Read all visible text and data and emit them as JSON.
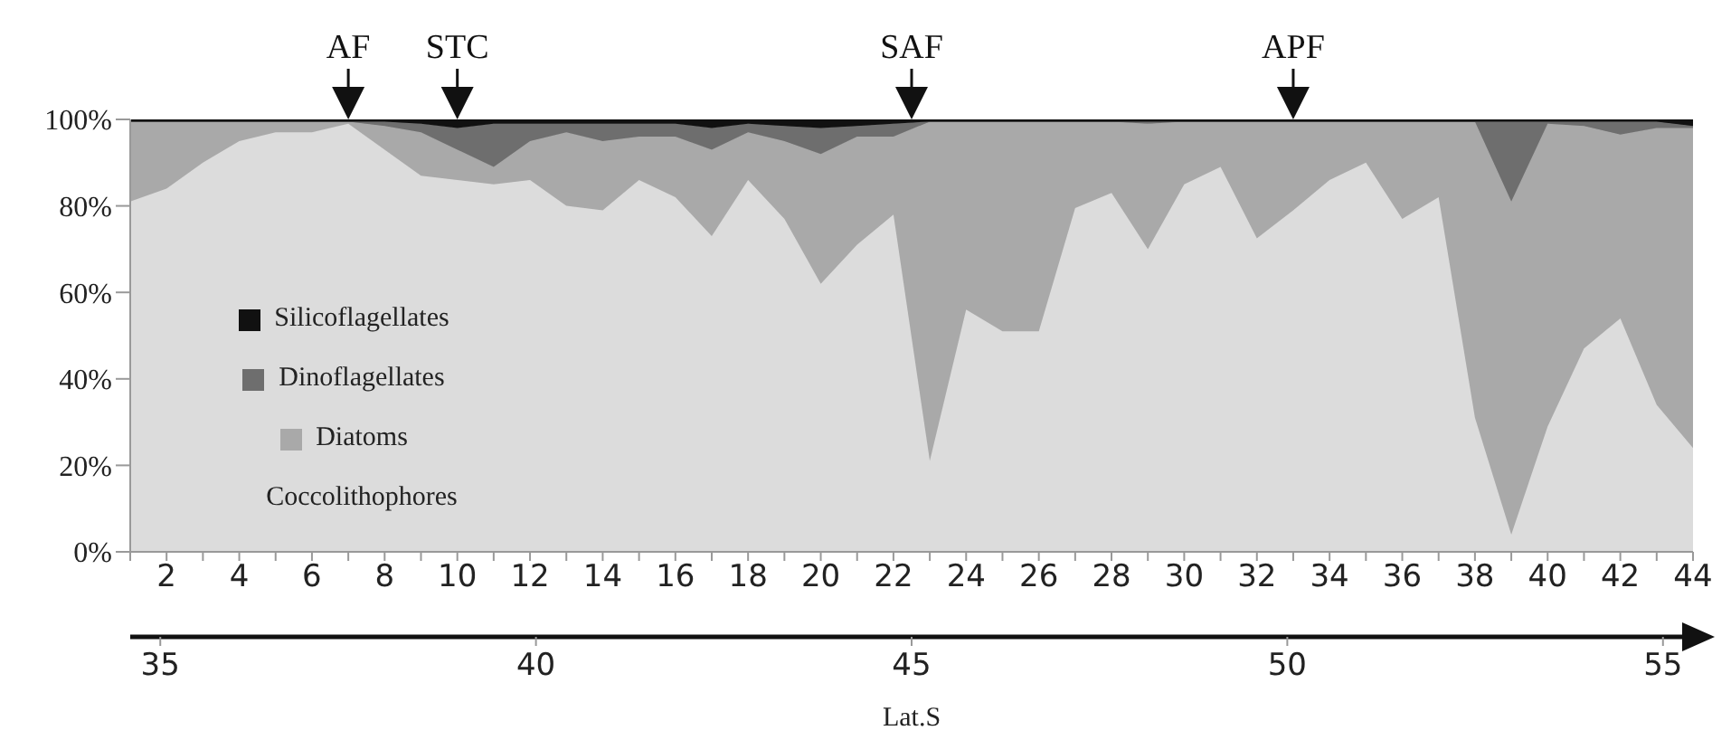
{
  "chart_data": {
    "type": "area",
    "stacked": true,
    "x2label": "Lat.S",
    "x": [
      1,
      2,
      3,
      4,
      5,
      6,
      7,
      8,
      9,
      10,
      11,
      12,
      13,
      14,
      15,
      16,
      17,
      18,
      19,
      20,
      21,
      22,
      23,
      24,
      25,
      26,
      27,
      28,
      29,
      30,
      31,
      32,
      33,
      34,
      35,
      36,
      37,
      38,
      39,
      40,
      41,
      42,
      43,
      44
    ],
    "series": [
      {
        "name": "Coccolithophores",
        "color": "#dcdcdc",
        "values": [
          81,
          84,
          90,
          95,
          97,
          97,
          99,
          93,
          87,
          86,
          85,
          86,
          80,
          79,
          86,
          82,
          73,
          86,
          77,
          62,
          71,
          78,
          21,
          56,
          51,
          51,
          79.5,
          83,
          70,
          85,
          89,
          72.5,
          79,
          86,
          90,
          77,
          82,
          31,
          4,
          29,
          47,
          54,
          34,
          24
        ]
      },
      {
        "name": "Diatoms",
        "color": "#a9a9a9",
        "values": [
          18.5,
          15.5,
          9.5,
          4.5,
          2.5,
          2.5,
          0.5,
          5.5,
          10,
          7,
          4,
          9,
          17,
          16,
          10,
          14,
          20,
          11,
          18,
          30,
          25,
          18,
          78.5,
          43.5,
          48.5,
          48.5,
          20,
          16.5,
          29,
          14.5,
          10.5,
          27,
          20.5,
          13.5,
          9.5,
          22.5,
          17.5,
          68.5,
          77,
          70,
          51.5,
          42.5,
          64,
          74
        ]
      },
      {
        "name": "Dinoflagellates",
        "color": "#6e6e6e",
        "values": [
          0,
          0,
          0,
          0,
          0,
          0,
          0,
          1,
          2,
          5,
          10,
          4,
          2,
          4,
          3,
          3,
          5,
          2,
          3.5,
          6,
          2.5,
          3,
          0,
          0,
          0,
          0,
          0,
          0,
          0.5,
          0,
          0,
          0,
          0,
          0,
          0,
          0,
          0,
          0,
          18.5,
          0.5,
          1,
          3,
          1.5,
          0.5
        ]
      },
      {
        "name": "Silicoflagellates",
        "color": "#111111",
        "values": [
          0.5,
          0.5,
          0.5,
          0.5,
          0.5,
          0.5,
          0.5,
          0.5,
          1,
          2,
          1,
          1,
          1,
          1,
          1,
          1,
          2,
          1,
          1.5,
          2,
          1.5,
          1,
          0.5,
          0.5,
          0.5,
          0.5,
          0.5,
          0.5,
          0.5,
          0.5,
          0.5,
          0.5,
          0.5,
          0.5,
          0.5,
          0.5,
          0.5,
          0.5,
          0.5,
          0.5,
          0.5,
          0.5,
          0.5,
          1.5
        ]
      }
    ],
    "xlim": [
      1,
      44
    ],
    "xticks": [
      {
        "value": 1,
        "label": null
      },
      2,
      {
        "value": 3,
        "label": null
      },
      4,
      {
        "value": 5,
        "label": null
      },
      6,
      {
        "value": 7,
        "label": null
      },
      8,
      {
        "value": 9,
        "label": null
      },
      10,
      {
        "value": 11,
        "label": null
      },
      12,
      {
        "value": 13,
        "label": null
      },
      14,
      {
        "value": 15,
        "label": null
      },
      16,
      {
        "value": 17,
        "label": null
      },
      18,
      {
        "value": 19,
        "label": null
      },
      20,
      {
        "value": 21,
        "label": null
      },
      22,
      {
        "value": 23,
        "label": null
      },
      24,
      {
        "value": 25,
        "label": null
      },
      26,
      {
        "value": 27,
        "label": null
      },
      28,
      {
        "value": 29,
        "label": null
      },
      30,
      {
        "value": 31,
        "label": null
      },
      32,
      {
        "value": 33,
        "label": null
      },
      34,
      {
        "value": 35,
        "label": null
      },
      36,
      {
        "value": 37,
        "label": null
      },
      38,
      {
        "value": 39,
        "label": null
      },
      40,
      {
        "value": 41,
        "label": null
      },
      42,
      {
        "value": 43,
        "label": null
      },
      44
    ],
    "x2lim": [
      34.6,
      55.4
    ],
    "x2ticks": [
      35,
      40,
      45,
      50,
      55
    ],
    "ylim": [
      0,
      100
    ],
    "yticks": [
      {
        "value": 0,
        "label": "0%"
      },
      {
        "value": 20,
        "label": "20%"
      },
      {
        "value": 40,
        "label": "40%"
      },
      {
        "value": 60,
        "label": "60%"
      },
      {
        "value": 80,
        "label": "80%"
      },
      {
        "value": 100,
        "label": "100%"
      }
    ],
    "annotations": [
      {
        "text": "AF",
        "x": 7,
        "y": 100
      },
      {
        "text": "STC",
        "x": 10,
        "y": 100
      },
      {
        "text": "SAF",
        "x": 22.5,
        "y": 100
      },
      {
        "text": "APF",
        "x": 33,
        "y": 100
      }
    ],
    "legend": "left",
    "grid": false
  }
}
